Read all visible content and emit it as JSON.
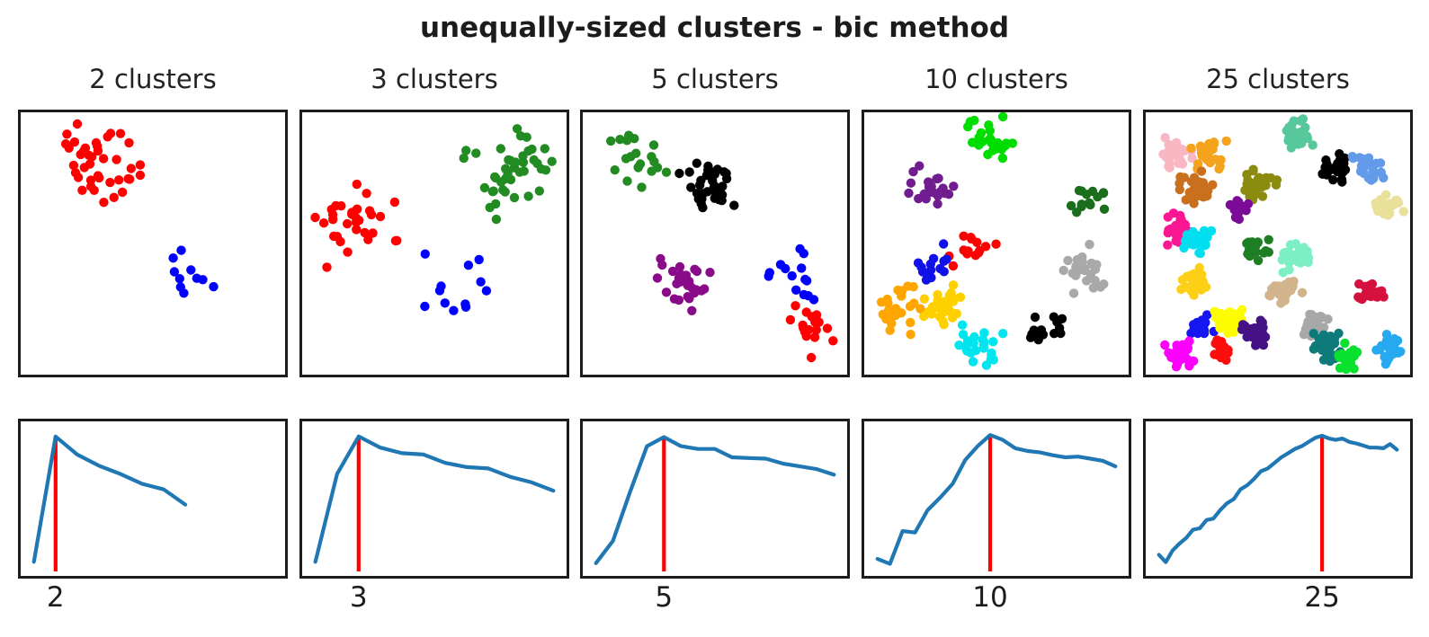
{
  "chart_data": {
    "type": "multi-panel",
    "title": "unequally-sized clusters - bic method",
    "layout": {
      "rows": [
        "cluster scatter plots",
        "bic score curves"
      ],
      "columns": 5,
      "grid": "off",
      "axes_ticks": "hidden except single x tick at best k",
      "legend": "none"
    },
    "styles": {
      "curve_color": "#1f77b4",
      "vline_color": "#ff0000",
      "axis_color": "#1c1c1c",
      "text_color": "#1c1c1c",
      "background": "#ffffff"
    },
    "panels": [
      {
        "title": "2 clusters",
        "scatter": {
          "type": "scatter",
          "clusters": [
            {
              "color": "#ff0000",
              "center": [
                0.31,
                0.21
              ],
              "n": 40,
              "spread": 0.085
            },
            {
              "color": "#0000ff",
              "center": [
                0.64,
                0.62
              ],
              "n": 10,
              "spread": 0.075
            }
          ]
        },
        "bic_curve": {
          "type": "line",
          "k_min": 1,
          "bic_norm": [
            0.05,
            0.95,
            0.82,
            0.74,
            0.68,
            0.61,
            0.57,
            0.46
          ],
          "xlim": [
            1,
            12
          ],
          "peak_k": 2,
          "peak_label": "2",
          "y_units": "BIC score (axis unlabeled, normalized 0-1)"
        }
      },
      {
        "title": "3 clusters",
        "scatter": {
          "type": "scatter",
          "clusters": [
            {
              "color": "#228b22",
              "center": [
                0.78,
                0.22
              ],
              "n": 42,
              "spread": 0.082
            },
            {
              "color": "#ff0000",
              "center": [
                0.2,
                0.43
              ],
              "n": 32,
              "spread": 0.075
            },
            {
              "color": "#0000ff",
              "center": [
                0.55,
                0.67
              ],
              "n": 12,
              "spread": 0.068
            }
          ]
        },
        "bic_curve": {
          "type": "line",
          "k_min": 1,
          "bic_norm": [
            0.05,
            0.68,
            0.95,
            0.87,
            0.83,
            0.82,
            0.76,
            0.73,
            0.72,
            0.66,
            0.62,
            0.56
          ],
          "xlim": [
            1,
            12
          ],
          "peak_k": 3,
          "peak_label": "3",
          "y_units": "BIC score (axis unlabeled, normalized 0-1)"
        }
      },
      {
        "title": "5 clusters",
        "scatter": {
          "type": "scatter",
          "clusters": [
            {
              "color": "#228b22",
              "center": [
                0.21,
                0.19
              ],
              "n": 20,
              "spread": 0.058
            },
            {
              "color": "#000000",
              "center": [
                0.48,
                0.27
              ],
              "n": 36,
              "spread": 0.052
            },
            {
              "color": "#8a0b8a",
              "center": [
                0.39,
                0.65
              ],
              "n": 28,
              "spread": 0.052
            },
            {
              "color": "#0000ff",
              "center": [
                0.8,
                0.61
              ],
              "n": 14,
              "spread": 0.05
            },
            {
              "color": "#ff0000",
              "center": [
                0.85,
                0.83
              ],
              "n": 17,
              "spread": 0.048
            }
          ]
        },
        "bic_curve": {
          "type": "line",
          "k_min": 1,
          "bic_norm": [
            0.04,
            0.2,
            0.55,
            0.88,
            0.945,
            0.88,
            0.86,
            0.86,
            0.8,
            0.795,
            0.79,
            0.755,
            0.735,
            0.715,
            0.675
          ],
          "xlim": [
            1,
            15
          ],
          "peak_k": 5,
          "peak_label": "5",
          "y_units": "BIC score (axis unlabeled, normalized 0-1)"
        }
      },
      {
        "title": "10 clusters",
        "scatter": {
          "type": "scatter",
          "clusters": [
            {
              "color": "#00dd00",
              "center": [
                0.47,
                0.11
              ],
              "n": 28,
              "spread": 0.045
            },
            {
              "color": "#6f1d8f",
              "center": [
                0.245,
                0.29
              ],
              "n": 22,
              "spread": 0.042
            },
            {
              "color": "#1b6e1b",
              "center": [
                0.85,
                0.33
              ],
              "n": 14,
              "spread": 0.038
            },
            {
              "color": "#ff0000",
              "center": [
                0.41,
                0.52
              ],
              "n": 14,
              "spread": 0.04
            },
            {
              "color": "#1010e8",
              "center": [
                0.27,
                0.58
              ],
              "n": 14,
              "spread": 0.038
            },
            {
              "color": "#a9a9a9",
              "center": [
                0.84,
                0.6
              ],
              "n": 26,
              "spread": 0.045
            },
            {
              "color": "#ffa500",
              "center": [
                0.12,
                0.75
              ],
              "n": 26,
              "spread": 0.045
            },
            {
              "color": "#ffd000",
              "center": [
                0.31,
                0.73
              ],
              "n": 28,
              "spread": 0.045
            },
            {
              "color": "#00e5ee",
              "center": [
                0.43,
                0.89
              ],
              "n": 24,
              "spread": 0.045
            },
            {
              "color": "#000000",
              "center": [
                0.7,
                0.83
              ],
              "n": 15,
              "spread": 0.04
            }
          ]
        },
        "bic_curve": {
          "type": "line",
          "k_min": 1,
          "bic_norm": [
            0.07,
            0.035,
            0.27,
            0.26,
            0.42,
            0.51,
            0.61,
            0.78,
            0.88,
            0.96,
            0.925,
            0.865,
            0.845,
            0.835,
            0.815,
            0.8,
            0.805,
            0.79,
            0.775,
            0.735
          ],
          "xlim": [
            1,
            20
          ],
          "peak_k": 10,
          "peak_label": "10",
          "y_units": "BIC score (axis unlabeled, normalized 0-1)"
        }
      },
      {
        "title": "25 clusters",
        "scatter": {
          "type": "scatter",
          "clusters": [
            {
              "color": "#f9b7c4",
              "center": [
                0.115,
                0.16
              ],
              "n": 30,
              "spread": 0.03
            },
            {
              "color": "#f5a31d",
              "center": [
                0.24,
                0.16
              ],
              "n": 26,
              "spread": 0.032
            },
            {
              "color": "#57c79c",
              "center": [
                0.57,
                0.085
              ],
              "n": 28,
              "spread": 0.028
            },
            {
              "color": "#000000",
              "center": [
                0.705,
                0.22
              ],
              "n": 22,
              "spread": 0.028
            },
            {
              "color": "#639bea",
              "center": [
                0.84,
                0.21
              ],
              "n": 26,
              "spread": 0.03
            },
            {
              "color": "#c8701e",
              "center": [
                0.19,
                0.285
              ],
              "n": 32,
              "spread": 0.028
            },
            {
              "color": "#8b8b10",
              "center": [
                0.435,
                0.28
              ],
              "n": 34,
              "spread": 0.03
            },
            {
              "color": "#7c0a99",
              "center": [
                0.35,
                0.37
              ],
              "n": 14,
              "spread": 0.02
            },
            {
              "color": "#e9e09a",
              "center": [
                0.915,
                0.36
              ],
              "n": 28,
              "spread": 0.028
            },
            {
              "color": "#fb1793",
              "center": [
                0.125,
                0.44
              ],
              "n": 28,
              "spread": 0.03
            },
            {
              "color": "#00dff0",
              "center": [
                0.2,
                0.49
              ],
              "n": 26,
              "spread": 0.028
            },
            {
              "color": "#1e7e24",
              "center": [
                0.42,
                0.52
              ],
              "n": 18,
              "spread": 0.024
            },
            {
              "color": "#7cf0c4",
              "center": [
                0.565,
                0.55
              ],
              "n": 28,
              "spread": 0.028
            },
            {
              "color": "#fdd017",
              "center": [
                0.185,
                0.65
              ],
              "n": 28,
              "spread": 0.03
            },
            {
              "color": "#d2b48c",
              "center": [
                0.53,
                0.685
              ],
              "n": 28,
              "spread": 0.028
            },
            {
              "color": "#d6113e",
              "center": [
                0.85,
                0.7
              ],
              "n": 24,
              "spread": 0.026
            },
            {
              "color": "#1616f0",
              "center": [
                0.21,
                0.815
              ],
              "n": 18,
              "spread": 0.022
            },
            {
              "color": "#fdfd00",
              "center": [
                0.32,
                0.79
              ],
              "n": 32,
              "spread": 0.028
            },
            {
              "color": "#451285",
              "center": [
                0.42,
                0.84
              ],
              "n": 32,
              "spread": 0.028
            },
            {
              "color": "#a8a8a8",
              "center": [
                0.63,
                0.8
              ],
              "n": 26,
              "spread": 0.028
            },
            {
              "color": "#fb00fb",
              "center": [
                0.135,
                0.915
              ],
              "n": 30,
              "spread": 0.028
            },
            {
              "color": "#fd0d0d",
              "center": [
                0.28,
                0.915
              ],
              "n": 20,
              "spread": 0.024
            },
            {
              "color": "#0e7a7a",
              "center": [
                0.69,
                0.9
              ],
              "n": 30,
              "spread": 0.028
            },
            {
              "color": "#0ae02e",
              "center": [
                0.77,
                0.93
              ],
              "n": 20,
              "spread": 0.024
            },
            {
              "color": "#27a9f0",
              "center": [
                0.92,
                0.9
              ],
              "n": 26,
              "spread": 0.028
            }
          ]
        },
        "bic_curve": {
          "type": "line",
          "k_min": 1,
          "bic_norm": [
            0.1,
            0.047,
            0.13,
            0.18,
            0.22,
            0.28,
            0.29,
            0.35,
            0.36,
            0.42,
            0.47,
            0.5,
            0.57,
            0.6,
            0.645,
            0.7,
            0.72,
            0.76,
            0.8,
            0.83,
            0.86,
            0.88,
            0.91,
            0.94,
            0.955,
            0.935,
            0.925,
            0.935,
            0.91,
            0.9,
            0.885,
            0.87,
            0.87,
            0.865,
            0.895,
            0.855
          ],
          "xlim": [
            1,
            36
          ],
          "peak_k": 25,
          "peak_label": "25",
          "y_units": "BIC score (axis unlabeled, normalized 0-1)"
        }
      }
    ]
  }
}
